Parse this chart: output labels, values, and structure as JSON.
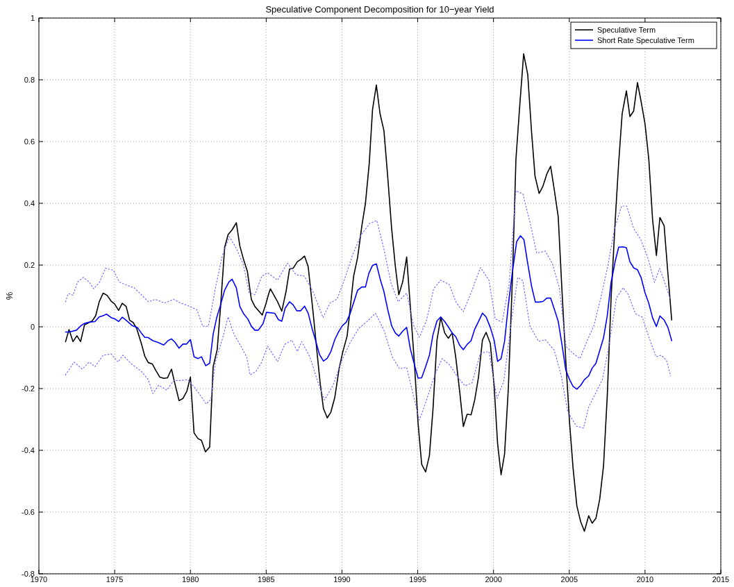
{
  "chart_data": {
    "type": "line",
    "title": "Speculative Component Decomposition for 10−year Yield",
    "ylabel": "%",
    "xlim": [
      1970,
      2015
    ],
    "xticks": [
      1970,
      1975,
      1980,
      1985,
      1990,
      1995,
      2000,
      2005,
      2010,
      2015
    ],
    "ylim": [
      -0.8,
      1
    ],
    "yticks": [
      -0.8,
      -0.6,
      -0.4,
      -0.2,
      0,
      0.2,
      0.4,
      0.6,
      0.8,
      1
    ],
    "grid": true,
    "legend": "top right",
    "line_style": "solid",
    "series": [
      {
        "name": "Speculative Term",
        "color": "#000000",
        "x": [
          1971.76,
          1971.99,
          1972.25,
          1972.51,
          1972.75,
          1973.01,
          1973.52,
          1973.75,
          1973.98,
          1974.24,
          1974.5,
          1974.77,
          1975.0,
          1975.26,
          1975.5,
          1975.76,
          1975.99,
          1976.22,
          1976.45,
          1976.76,
          1976.99,
          1977.22,
          1977.48,
          1977.75,
          1977.98,
          1978.24,
          1978.49,
          1978.75,
          1978.98,
          1979.25,
          1979.51,
          1979.77,
          1980.0,
          1980.24,
          1980.5,
          1980.73,
          1980.99,
          1981.27,
          1981.5,
          1981.77,
          1981.99,
          1982.26,
          1982.49,
          1982.75,
          1983.03,
          1983.26,
          1983.49,
          1983.76,
          1984.02,
          1984.25,
          1984.74,
          1984.98,
          1985.17,
          1985.28,
          1985.75,
          1986.03,
          1986.31,
          1986.54,
          1986.78,
          1987.06,
          1987.3,
          1987.53,
          1987.77,
          1988.09,
          1988.37,
          1988.56,
          1988.78,
          1989.03,
          1989.27,
          1989.53,
          1989.81,
          1990.06,
          1990.34,
          1990.52,
          1990.77,
          1991.03,
          1991.31,
          1991.55,
          1991.8,
          1992.02,
          1992.27,
          1992.51,
          1992.77,
          1993.01,
          1993.28,
          1993.52,
          1993.75,
          1994.01,
          1994.27,
          1994.51,
          1994.78,
          1995.02,
          1995.26,
          1995.52,
          1995.77,
          1996.01,
          1996.27,
          1996.52,
          1996.78,
          1997.02,
          1997.27,
          1997.51,
          1997.77,
          1998.01,
          1998.26,
          1998.52,
          1998.76,
          1999.01,
          1999.27,
          1999.51,
          1999.79,
          2000.04,
          2000.27,
          2000.5,
          2000.73,
          2000.98,
          2001.26,
          2001.48,
          2001.74,
          2001.99,
          2002.26,
          2002.51,
          2002.74,
          2003.01,
          2003.26,
          2003.52,
          2003.77,
          2004.02,
          2004.27,
          2004.52,
          2004.77,
          2005.02,
          2005.25,
          2005.5,
          2005.75,
          2006.0,
          2006.28,
          2006.51,
          2006.76,
          2007.01,
          2007.26,
          2007.51,
          2007.76,
          2008.04,
          2008.26,
          2008.49,
          2008.77,
          2009.0,
          2009.25,
          2009.5,
          2009.75,
          2010.0,
          2010.25,
          2010.5,
          2010.75,
          2010.98,
          2011.26,
          2011.51,
          2011.76
        ],
        "values": [
          -0.048,
          -0.009,
          -0.048,
          -0.029,
          -0.048,
          0.006,
          0.019,
          0.036,
          0.081,
          0.109,
          0.102,
          0.083,
          0.074,
          0.053,
          0.076,
          0.066,
          0.021,
          0.014,
          -0.005,
          -0.054,
          -0.095,
          -0.116,
          -0.12,
          -0.144,
          -0.163,
          -0.167,
          -0.165,
          -0.137,
          -0.185,
          -0.239,
          -0.232,
          -0.208,
          -0.163,
          -0.344,
          -0.362,
          -0.368,
          -0.405,
          -0.389,
          -0.129,
          -0.073,
          0.066,
          0.258,
          0.299,
          0.314,
          0.337,
          0.262,
          0.221,
          0.179,
          0.089,
          0.066,
          0.038,
          0.074,
          0.108,
          0.123,
          0.081,
          0.051,
          0.114,
          0.187,
          0.19,
          0.211,
          0.219,
          0.229,
          0.195,
          0.049,
          -0.09,
          -0.182,
          -0.265,
          -0.295,
          -0.276,
          -0.228,
          -0.136,
          -0.08,
          -0.03,
          0.049,
          0.164,
          0.224,
          0.326,
          0.4,
          0.529,
          0.705,
          0.783,
          0.691,
          0.635,
          0.492,
          0.317,
          0.197,
          0.104,
          0.146,
          0.226,
          0.067,
          -0.117,
          -0.311,
          -0.445,
          -0.47,
          -0.417,
          -0.265,
          -0.043,
          0.03,
          -0.02,
          -0.037,
          -0.02,
          -0.099,
          -0.21,
          -0.323,
          -0.283,
          -0.285,
          -0.237,
          -0.163,
          -0.043,
          -0.018,
          -0.054,
          -0.191,
          -0.378,
          -0.479,
          -0.412,
          -0.199,
          0.172,
          0.542,
          0.722,
          0.884,
          0.817,
          0.632,
          0.488,
          0.432,
          0.455,
          0.495,
          0.52,
          0.441,
          0.357,
          0.116,
          -0.109,
          -0.311,
          -0.457,
          -0.58,
          -0.631,
          -0.662,
          -0.612,
          -0.636,
          -0.62,
          -0.558,
          -0.451,
          -0.221,
          0.093,
          0.351,
          0.531,
          0.69,
          0.764,
          0.681,
          0.699,
          0.791,
          0.727,
          0.657,
          0.542,
          0.346,
          0.231,
          0.354,
          0.327,
          0.172,
          0.022
        ]
      },
      {
        "name": "Short Rate Speculative Term",
        "color": "#0000ff",
        "x": [
          1971.76,
          1972.02,
          1972.48,
          1972.78,
          1973.01,
          1973.32,
          1973.7,
          1973.98,
          1974.24,
          1974.46,
          1974.77,
          1975.0,
          1975.26,
          1975.5,
          1975.76,
          1976.15,
          1976.5,
          1976.76,
          1976.99,
          1977.22,
          1977.52,
          1977.83,
          1978.24,
          1978.52,
          1978.75,
          1978.98,
          1979.25,
          1979.51,
          1979.74,
          1980.0,
          1980.24,
          1980.5,
          1980.73,
          1981.01,
          1981.27,
          1981.5,
          1981.73,
          1981.96,
          1982.26,
          1982.54,
          1982.75,
          1983.03,
          1983.26,
          1983.49,
          1983.79,
          1984.02,
          1984.25,
          1984.48,
          1984.79,
          1985.02,
          1985.56,
          1985.81,
          1986.03,
          1986.25,
          1986.54,
          1986.78,
          1987.02,
          1987.28,
          1987.53,
          1987.77,
          1988.03,
          1988.28,
          1988.52,
          1988.78,
          1989.03,
          1989.27,
          1989.53,
          1989.78,
          1990.02,
          1990.28,
          1990.52,
          1990.77,
          1991.03,
          1991.31,
          1991.55,
          1991.78,
          1992.02,
          1992.27,
          1992.53,
          1992.77,
          1993.01,
          1993.28,
          1993.52,
          1993.75,
          1994.01,
          1994.27,
          1994.51,
          1994.78,
          1995.02,
          1995.26,
          1995.52,
          1995.77,
          1996.01,
          1996.27,
          1996.52,
          1996.78,
          1997.02,
          1997.27,
          1997.51,
          1997.77,
          1998.01,
          1998.26,
          1998.52,
          1998.76,
          1999.01,
          1999.27,
          1999.51,
          1999.79,
          2000.04,
          2000.27,
          2000.5,
          2000.73,
          2000.98,
          2001.26,
          2001.53,
          2001.78,
          2002.01,
          2002.26,
          2002.51,
          2002.76,
          2003.01,
          2003.26,
          2003.52,
          2003.77,
          2004.02,
          2004.27,
          2004.52,
          2004.77,
          2005.02,
          2005.25,
          2005.5,
          2005.75,
          2006.0,
          2006.28,
          2006.51,
          2006.76,
          2007.01,
          2007.26,
          2007.51,
          2007.76,
          2008.04,
          2008.26,
          2008.54,
          2008.77,
          2009.0,
          2009.25,
          2009.5,
          2009.75,
          2010.0,
          2010.25,
          2010.5,
          2010.75,
          2010.98,
          2011.26,
          2011.51,
          2011.76
        ],
        "values": [
          -0.017,
          -0.017,
          -0.011,
          0.004,
          0.011,
          0.015,
          0.017,
          0.032,
          0.036,
          0.041,
          0.03,
          0.026,
          0.017,
          0.031,
          0.021,
          0.004,
          -0.002,
          -0.02,
          -0.034,
          -0.035,
          -0.045,
          -0.05,
          -0.059,
          -0.045,
          -0.039,
          -0.05,
          -0.069,
          -0.056,
          -0.056,
          -0.041,
          -0.097,
          -0.103,
          -0.097,
          -0.126,
          -0.118,
          -0.024,
          0.029,
          0.066,
          0.119,
          0.145,
          0.154,
          0.126,
          0.066,
          0.044,
          0.025,
          0.002,
          -0.011,
          -0.011,
          0.01,
          0.047,
          0.044,
          0.023,
          0.018,
          0.06,
          0.081,
          0.071,
          0.052,
          0.052,
          0.067,
          0.044,
          -0.006,
          -0.048,
          -0.09,
          -0.111,
          -0.102,
          -0.08,
          -0.041,
          -0.016,
          0.003,
          0.015,
          0.04,
          0.078,
          0.118,
          0.129,
          0.129,
          0.174,
          0.199,
          0.204,
          0.153,
          0.114,
          0.058,
          0.003,
          -0.02,
          -0.03,
          -0.014,
          -0.002,
          -0.071,
          -0.122,
          -0.166,
          -0.165,
          -0.129,
          -0.092,
          -0.025,
          0.019,
          0.032,
          0.017,
          0.0,
          -0.02,
          -0.032,
          -0.06,
          -0.074,
          -0.057,
          -0.045,
          -0.008,
          0.017,
          0.044,
          0.032,
          -0.002,
          -0.043,
          -0.112,
          -0.103,
          -0.047,
          0.071,
          0.183,
          0.276,
          0.295,
          0.282,
          0.205,
          0.132,
          0.08,
          0.08,
          0.082,
          0.093,
          0.093,
          0.056,
          0.018,
          -0.058,
          -0.14,
          -0.171,
          -0.193,
          -0.202,
          -0.19,
          -0.171,
          -0.159,
          -0.134,
          -0.118,
          -0.077,
          -0.036,
          0.037,
          0.144,
          0.214,
          0.258,
          0.259,
          0.256,
          0.211,
          0.191,
          0.185,
          0.158,
          0.11,
          0.076,
          0.029,
          0.001,
          0.035,
          0.022,
          -0.002,
          -0.045
        ]
      },
      {
        "color": "#7070ff",
        "line_style": "dotted",
        "x": [
          1971.76,
          1971.94,
          1972.25,
          1972.55,
          1972.94,
          1973.32,
          1973.62,
          1974.01,
          1974.39,
          1974.92,
          1975.31,
          1975.84,
          1976.3,
          1976.76,
          1977.22,
          1977.68,
          1978.29,
          1978.9,
          1979.36,
          1979.97,
          1980.43,
          1980.81,
          1981.19,
          1981.65,
          1982.11,
          1982.57,
          1983.03,
          1983.49,
          1983.87,
          1984.25,
          1984.71,
          1985.09,
          1985.75,
          1986.4,
          1986.97,
          1987.53,
          1988.09,
          1988.75,
          1989.21,
          1989.68,
          1990.15,
          1990.71,
          1991.27,
          1991.84,
          1992.3,
          1992.77,
          1993.24,
          1993.71,
          1994.27,
          1994.74,
          1995.11,
          1995.58,
          1996.05,
          1996.52,
          1997.08,
          1997.55,
          1998.01,
          1998.58,
          1999.14,
          1999.7,
          2000.11,
          2000.57,
          2001.03,
          2001.48,
          2001.94,
          2002.4,
          2002.85,
          2003.42,
          2003.88,
          2004.34,
          2004.79,
          2005.25,
          2005.71,
          2006.16,
          2006.62,
          2007.08,
          2007.53,
          2007.99,
          2008.45,
          2008.79,
          2009.25,
          2009.7,
          2010.16,
          2010.62,
          2010.96,
          2011.3,
          2011.64
        ],
        "values": [
          0.081,
          0.108,
          0.102,
          0.145,
          0.16,
          0.145,
          0.123,
          0.145,
          0.19,
          0.183,
          0.145,
          0.134,
          0.126,
          0.104,
          0.081,
          0.089,
          0.077,
          0.089,
          0.077,
          0.066,
          0.055,
          0.002,
          0.002,
          0.126,
          0.232,
          0.292,
          0.254,
          0.202,
          0.111,
          0.104,
          0.164,
          0.175,
          0.151,
          0.206,
          0.169,
          0.164,
          0.114,
          0.03,
          0.077,
          0.09,
          0.151,
          0.234,
          0.298,
          0.335,
          0.344,
          0.252,
          0.141,
          0.081,
          0.109,
          0.003,
          -0.034,
          0.021,
          0.123,
          0.151,
          0.137,
          0.077,
          0.049,
          0.118,
          0.192,
          0.151,
          0.026,
          0.015,
          0.138,
          0.441,
          0.43,
          0.34,
          0.239,
          0.245,
          0.205,
          0.127,
          -0.064,
          -0.086,
          -0.103,
          -0.047,
          0.003,
          0.093,
          0.194,
          0.318,
          0.391,
          0.391,
          0.318,
          0.284,
          0.228,
          0.144,
          0.189,
          0.144,
          0.093
        ]
      },
      {
        "color": "#7070ff",
        "line_style": "dotted",
        "x": [
          1971.76,
          1972.32,
          1972.86,
          1973.32,
          1973.7,
          1974.24,
          1974.77,
          1975.23,
          1975.54,
          1976.15,
          1976.76,
          1977.22,
          1977.52,
          1977.91,
          1978.44,
          1978.9,
          1979.36,
          1979.82,
          1980.28,
          1980.73,
          1981.04,
          1981.35,
          1981.65,
          1982.11,
          1982.49,
          1982.87,
          1983.33,
          1983.72,
          1983.94,
          1984.33,
          1984.71,
          1985.09,
          1985.75,
          1986.22,
          1986.69,
          1987.06,
          1987.34,
          1987.9,
          1988.37,
          1988.84,
          1989.4,
          1989.96,
          1990.52,
          1991.09,
          1991.65,
          1992.21,
          1992.77,
          1993.33,
          1993.8,
          1994.27,
          1994.74,
          1995.11,
          1995.58,
          1996.14,
          1996.61,
          1997.08,
          1997.64,
          1998.11,
          1998.58,
          1999.14,
          1999.7,
          2000.23,
          2000.68,
          2001.14,
          2001.6,
          2001.94,
          2002.4,
          2002.97,
          2003.42,
          2004.0,
          2004.45,
          2004.91,
          2005.48,
          2005.94,
          2006.28,
          2006.74,
          2007.19,
          2007.65,
          2008.11,
          2008.56,
          2008.9,
          2009.36,
          2009.82,
          2010.27,
          2010.73,
          2011.07,
          2011.42,
          2011.69
        ],
        "values": [
          -0.156,
          -0.114,
          -0.137,
          -0.114,
          -0.129,
          -0.092,
          -0.088,
          -0.114,
          -0.092,
          -0.122,
          -0.144,
          -0.171,
          -0.216,
          -0.189,
          -0.205,
          -0.174,
          -0.174,
          -0.171,
          -0.197,
          -0.227,
          -0.25,
          -0.235,
          -0.114,
          -0.039,
          0.032,
          -0.024,
          -0.062,
          -0.099,
          -0.156,
          -0.144,
          -0.114,
          -0.062,
          -0.113,
          -0.057,
          -0.043,
          -0.08,
          -0.048,
          -0.099,
          -0.173,
          -0.237,
          -0.191,
          -0.113,
          -0.053,
          -0.006,
          0.017,
          0.044,
          -0.011,
          -0.099,
          -0.136,
          -0.131,
          -0.228,
          -0.302,
          -0.237,
          -0.154,
          -0.103,
          -0.122,
          -0.163,
          -0.191,
          -0.182,
          -0.085,
          -0.08,
          -0.232,
          -0.176,
          0.003,
          0.16,
          0.149,
          0.003,
          -0.047,
          -0.042,
          -0.075,
          -0.154,
          -0.277,
          -0.322,
          -0.328,
          -0.26,
          -0.215,
          -0.171,
          -0.053,
          0.093,
          0.127,
          0.104,
          0.043,
          0.031,
          -0.036,
          -0.097,
          -0.092,
          -0.109,
          -0.159
        ]
      }
    ]
  }
}
